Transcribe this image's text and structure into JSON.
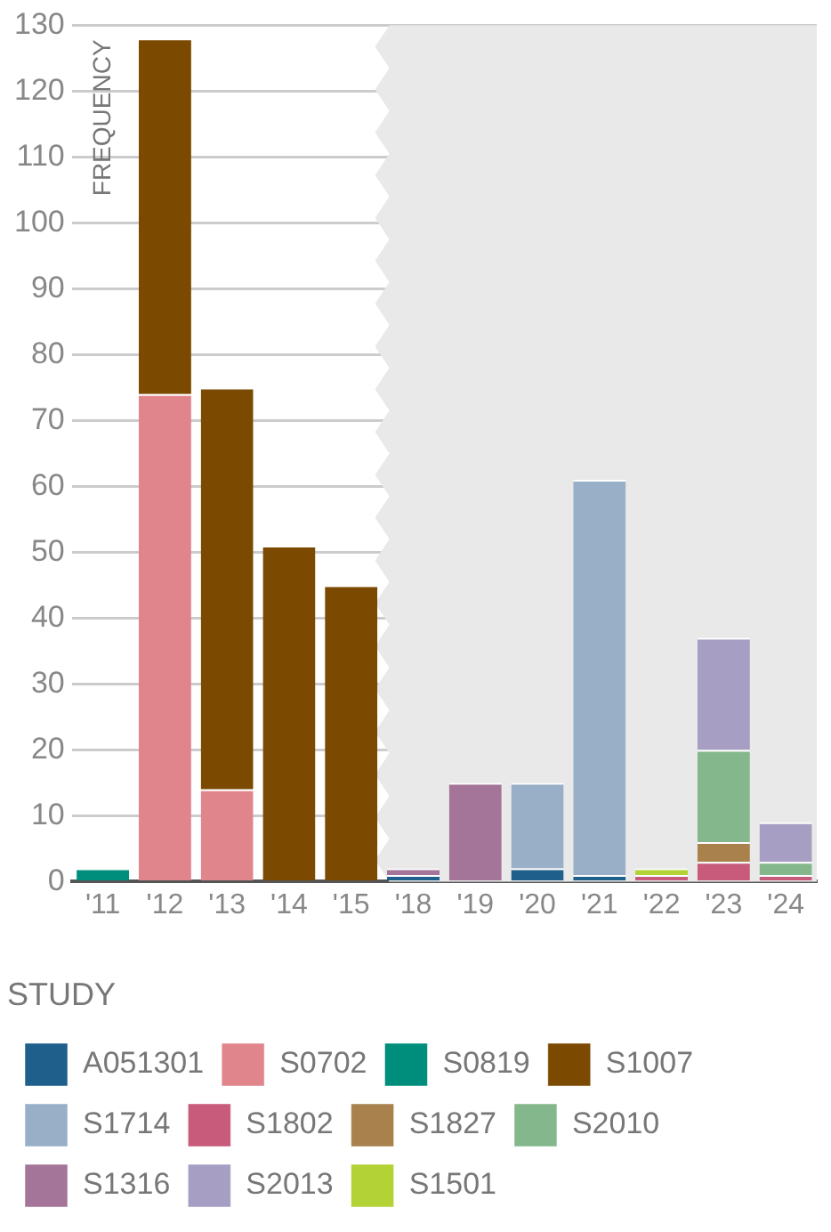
{
  "chart_data": {
    "type": "bar",
    "stacked": true,
    "ylabel": "FREQUENCY",
    "legend_title": "STUDY",
    "legend": "bottom",
    "grid": "y",
    "categories": [
      "'11",
      "'12",
      "'13",
      "'14",
      "'15",
      "'18",
      "'19",
      "'20",
      "'21",
      "'22",
      "'23",
      "'24"
    ],
    "ylim": [
      0,
      130
    ],
    "yticks": [
      0,
      10,
      20,
      30,
      40,
      50,
      60,
      70,
      80,
      90,
      100,
      110,
      120,
      130
    ],
    "bands": [
      {
        "axis": "x",
        "from": "'18",
        "to": "'24",
        "color": "#e8e9e8"
      }
    ],
    "series": [
      {
        "name": "A051301",
        "color": "#1f5f8b",
        "values": [
          null,
          null,
          null,
          null,
          null,
          1,
          null,
          2,
          1,
          null,
          null,
          null
        ]
      },
      {
        "name": "S0702",
        "color": "#e1858d",
        "values": [
          null,
          74,
          14,
          null,
          null,
          null,
          null,
          null,
          null,
          null,
          null,
          null
        ]
      },
      {
        "name": "S0819",
        "color": "#008e7c",
        "values": [
          2,
          null,
          null,
          null,
          null,
          null,
          null,
          null,
          null,
          null,
          null,
          null
        ]
      },
      {
        "name": "S1007",
        "color": "#7b4900",
        "values": [
          null,
          54,
          61,
          51,
          45,
          null,
          null,
          null,
          null,
          null,
          null,
          null
        ]
      },
      {
        "name": "S1714",
        "color": "#98afc7",
        "values": [
          null,
          null,
          null,
          null,
          null,
          null,
          null,
          13,
          60,
          null,
          null,
          null
        ]
      },
      {
        "name": "S1802",
        "color": "#c85a7c",
        "values": [
          null,
          null,
          null,
          null,
          null,
          null,
          null,
          null,
          null,
          1,
          3,
          1
        ]
      },
      {
        "name": "S1827",
        "color": "#a8814c",
        "values": [
          null,
          null,
          null,
          null,
          null,
          null,
          null,
          null,
          null,
          null,
          3,
          null
        ]
      },
      {
        "name": "S2010",
        "color": "#84b88c",
        "values": [
          null,
          null,
          null,
          null,
          null,
          null,
          null,
          null,
          null,
          null,
          14,
          2
        ]
      },
      {
        "name": "S1316",
        "color": "#a47599",
        "values": [
          null,
          null,
          null,
          null,
          null,
          1,
          15,
          null,
          null,
          null,
          null,
          null
        ]
      },
      {
        "name": "S2013",
        "color": "#a79ec3",
        "values": [
          null,
          null,
          null,
          null,
          null,
          null,
          null,
          null,
          null,
          null,
          17,
          6
        ]
      },
      {
        "name": "S1501",
        "color": "#b3d236",
        "values": [
          null,
          null,
          null,
          null,
          null,
          null,
          null,
          null,
          null,
          1,
          null,
          null
        ]
      }
    ]
  }
}
